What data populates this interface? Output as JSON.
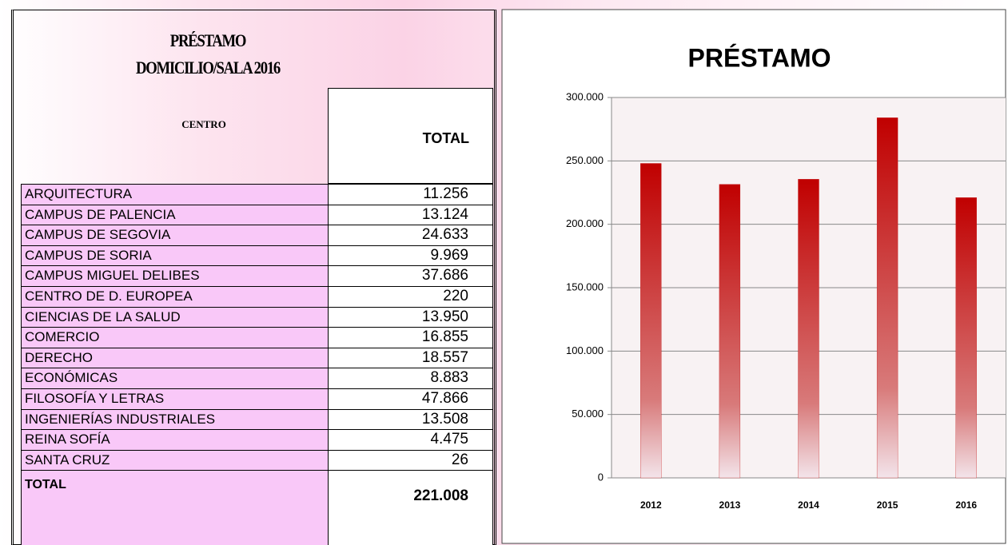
{
  "table": {
    "title": [
      "PRÉSTAMO",
      "DOMICILIO/SALA 2016"
    ],
    "header": [
      "CENTRO",
      "TOTAL"
    ],
    "rows": [
      [
        "ARQUITECTURA",
        "11.256"
      ],
      [
        "CAMPUS DE PALENCIA",
        "13.124"
      ],
      [
        "CAMPUS DE SEGOVIA",
        "24.633"
      ],
      [
        "CAMPUS DE SORIA",
        "9.969"
      ],
      [
        "CAMPUS MIGUEL DELIBES",
        "37.686"
      ],
      [
        "CENTRO DE D. EUROPEA",
        "220"
      ],
      [
        "CIENCIAS DE LA SALUD",
        "13.950"
      ],
      [
        "COMERCIO",
        "16.855"
      ],
      [
        "DERECHO",
        "18.557"
      ],
      [
        "ECONÓMICAS",
        "8.883"
      ],
      [
        "FILOSOFÍA Y LETRAS",
        "47.866"
      ],
      [
        "INGENIERÍAS INDUSTRIALES",
        "13.508"
      ],
      [
        "REINA SOFÍA",
        "4.475"
      ],
      [
        "SANTA CRUZ",
        "26"
      ]
    ],
    "total": [
      "TOTAL",
      "221.008"
    ]
  },
  "chart_data": {
    "type": "bar",
    "title": "PRÉSTAMO",
    "categories": [
      "2012",
      "2013",
      "2014",
      "2015",
      "2016"
    ],
    "values": [
      248000,
      231500,
      235500,
      284000,
      221008
    ],
    "color": "#c00000",
    "ylim": [
      0,
      300000
    ],
    "yticks": [
      0,
      {
        "value": 50000,
        "label": "50.000"
      },
      {
        "value": 100000,
        "label": "100.000"
      },
      {
        "value": 150000,
        "label": "150.000"
      },
      {
        "value": 200000,
        "label": "200.000"
      },
      {
        "value": 250000,
        "label": "250.000"
      },
      {
        "value": 300000,
        "label": "300.000"
      }
    ],
    "grid": true
  }
}
